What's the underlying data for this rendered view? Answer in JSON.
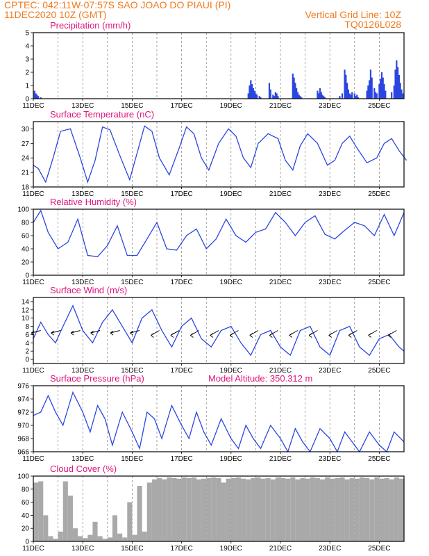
{
  "header": {
    "line1": "CPTEC:   042:11W-07:57S   SAO JOAO DO PIAUI (PI)",
    "line2_left": "11DEC2020 10Z (GMT)",
    "line2_right": "Vertical Grid Line: 10Z",
    "line3_right": "TQ0126L028"
  },
  "colors": {
    "header": "#f07a1e",
    "panel_title": "#e0157b",
    "series": "#2b46e0",
    "cloud": "#a9a9a9"
  },
  "chart_data": [
    {
      "type": "bar",
      "title": "Precipitation (mm/h)",
      "ylim": [
        0,
        5
      ],
      "yticks": [
        "0",
        "1",
        "2",
        "3",
        "4",
        "5"
      ],
      "xticks": [
        "11DEC",
        "13DEC",
        "15DEC",
        "17DEC",
        "19DEC",
        "21DEC",
        "23DEC",
        "25DEC"
      ],
      "series": [
        {
          "x": [
            0.05,
            0.1,
            0.15,
            0.2,
            0.3,
            8.7,
            8.75,
            8.8,
            8.85,
            8.9,
            8.95,
            9.0,
            9.05,
            9.15,
            9.2,
            9.55,
            9.6,
            9.7,
            9.75,
            9.8,
            9.85,
            9.9,
            10.5,
            10.55,
            10.6,
            10.65,
            10.7,
            10.75,
            10.8,
            10.85,
            11.5,
            11.55,
            11.6,
            11.65,
            11.7,
            11.75,
            11.8,
            12.4,
            12.5,
            12.6,
            12.65,
            12.7,
            12.75,
            12.8,
            12.85,
            12.9,
            13.0,
            13.05,
            13.1,
            13.15,
            13.5,
            13.55,
            13.6,
            13.65,
            13.7,
            13.8,
            13.85,
            13.9,
            14.0,
            14.05,
            14.1,
            14.15,
            14.2,
            14.25,
            14.5,
            14.6,
            14.65,
            14.7,
            14.75,
            14.8,
            14.85,
            14.9,
            14.95
          ],
          "values": [
            0.6,
            0.4,
            0.3,
            0.2,
            0.1,
            0.4,
            1.0,
            1.4,
            1.1,
            0.8,
            0.6,
            0.4,
            0.3,
            0.2,
            0.1,
            1.2,
            0.7,
            0.3,
            0.2,
            0.5,
            0.4,
            0.2,
            1.9,
            1.6,
            1.2,
            0.8,
            0.5,
            0.3,
            0.2,
            0.1,
            0.6,
            0.4,
            0.8,
            0.5,
            0.3,
            0.2,
            0.1,
            0.2,
            0.4,
            2.2,
            1.8,
            1.2,
            0.7,
            0.4,
            0.3,
            0.5,
            0.4,
            0.2,
            0.3,
            0.1,
            0.6,
            1.0,
            1.4,
            2.2,
            1.6,
            0.8,
            0.5,
            0.4,
            1.1,
            1.5,
            2.0,
            1.6,
            1.1,
            0.6,
            0.5,
            1.0,
            2.2,
            2.9,
            2.4,
            1.8,
            1.2,
            0.7,
            0.4
          ]
        }
      ]
    },
    {
      "type": "line",
      "title": "Surface Temperature (nC)",
      "ylim": [
        18,
        31.5
      ],
      "yticks": [
        "18",
        "21",
        "24",
        "27",
        "30"
      ],
      "xticks": [
        "11DEC",
        "13DEC",
        "15DEC",
        "17DEC",
        "19DEC",
        "21DEC",
        "23DEC",
        "25DEC"
      ],
      "series": [
        {
          "x": [
            0,
            0.2,
            0.5,
            0.8,
            1.1,
            1.5,
            1.9,
            2.2,
            2.5,
            2.8,
            3.1,
            3.5,
            3.9,
            4.2,
            4.5,
            4.8,
            5.1,
            5.5,
            5.9,
            6.2,
            6.5,
            6.8,
            7.1,
            7.5,
            7.9,
            8.2,
            8.5,
            8.8,
            9.1,
            9.5,
            9.9,
            10.2,
            10.5,
            10.8,
            11.1,
            11.5,
            11.9,
            12.2,
            12.5,
            12.8,
            13.1,
            13.5,
            13.9,
            14.2,
            14.5,
            14.8,
            15.1
          ],
          "values": [
            22.5,
            21.8,
            19.0,
            24.0,
            29.5,
            30.0,
            24.0,
            19.0,
            23.5,
            30.4,
            29.8,
            24.5,
            19.5,
            25.0,
            30.6,
            29.5,
            24.0,
            20.5,
            26.0,
            30.4,
            29.0,
            24.0,
            21.5,
            27.0,
            30.0,
            28.5,
            24.0,
            22.0,
            27.0,
            29.0,
            28.0,
            23.5,
            21.5,
            26.5,
            29.0,
            27.0,
            22.5,
            23.5,
            27.0,
            28.5,
            26.0,
            23.0,
            24.0,
            27.0,
            28.0,
            25.5,
            23.5
          ]
        }
      ]
    },
    {
      "type": "line",
      "title": "Relative Humidity (%)",
      "ylim": [
        0,
        100
      ],
      "yticks": [
        "0",
        "20",
        "40",
        "60",
        "80",
        "100"
      ],
      "xticks": [
        "11DEC",
        "13DEC",
        "15DEC",
        "17DEC",
        "19DEC",
        "21DEC",
        "23DEC",
        "25DEC"
      ],
      "series": [
        {
          "x": [
            0,
            0.3,
            0.6,
            1.0,
            1.4,
            1.8,
            2.2,
            2.6,
            3.0,
            3.4,
            3.8,
            4.2,
            4.6,
            5.0,
            5.4,
            5.8,
            6.2,
            6.6,
            7.0,
            7.4,
            7.8,
            8.2,
            8.6,
            9.0,
            9.4,
            9.8,
            10.2,
            10.6,
            11.0,
            11.4,
            11.8,
            12.2,
            12.6,
            13.0,
            13.4,
            13.8,
            14.2,
            14.6,
            15.0
          ],
          "values": [
            80,
            98,
            65,
            40,
            50,
            85,
            30,
            28,
            45,
            75,
            30,
            30,
            55,
            80,
            40,
            38,
            60,
            70,
            40,
            55,
            85,
            60,
            50,
            65,
            70,
            95,
            80,
            60,
            80,
            90,
            62,
            55,
            68,
            80,
            75,
            60,
            92,
            60,
            95
          ]
        }
      ]
    },
    {
      "type": "line",
      "title": "Surface Wind (m/s)",
      "ylim": [
        -1,
        15
      ],
      "yticks": [
        "0",
        "2",
        "4",
        "6",
        "8",
        "10",
        "12",
        "14"
      ],
      "xticks": [
        "11DEC",
        "13DEC",
        "15DEC",
        "17DEC",
        "19DEC",
        "21DEC",
        "23DEC",
        "25DEC"
      ],
      "series": [
        {
          "x": [
            0,
            0.3,
            0.6,
            0.9,
            1.2,
            1.6,
            2.0,
            2.4,
            2.8,
            3.2,
            3.6,
            4.0,
            4.4,
            4.8,
            5.2,
            5.6,
            6.0,
            6.4,
            6.8,
            7.2,
            7.6,
            8.0,
            8.4,
            8.8,
            9.2,
            9.6,
            10.0,
            10.4,
            10.8,
            11.2,
            11.6,
            12.0,
            12.4,
            12.8,
            13.2,
            13.6,
            14.0,
            14.4,
            14.8,
            15.0
          ],
          "values": [
            5,
            9,
            6,
            4,
            8,
            13,
            7,
            4,
            9,
            12,
            8,
            4,
            10,
            12,
            7,
            3,
            8,
            10,
            5,
            3,
            7,
            8,
            4,
            1,
            6,
            7,
            3,
            1,
            7,
            8,
            3,
            1,
            7,
            8,
            3,
            1,
            5,
            6,
            3,
            2
          ]
        }
      ]
    },
    {
      "type": "line",
      "title": "Surface Pressure (hPa)",
      "annotation": "Model Altitude: 350.312  m",
      "ylim": [
        966,
        976
      ],
      "yticks": [
        "966",
        "968",
        "970",
        "972",
        "974",
        "976"
      ],
      "xticks": [
        "11DEC",
        "13DEC",
        "15DEC",
        "17DEC",
        "19DEC",
        "21DEC",
        "23DEC",
        "25DEC"
      ],
      "series": [
        {
          "x": [
            0,
            0.3,
            0.6,
            0.9,
            1.2,
            1.6,
            2.0,
            2.3,
            2.6,
            2.9,
            3.2,
            3.6,
            4.0,
            4.3,
            4.6,
            4.9,
            5.2,
            5.6,
            6.0,
            6.3,
            6.6,
            6.9,
            7.2,
            7.6,
            8.0,
            8.3,
            8.6,
            8.9,
            9.2,
            9.6,
            10.0,
            10.3,
            10.6,
            10.9,
            11.2,
            11.6,
            12.0,
            12.3,
            12.6,
            12.9,
            13.2,
            13.6,
            14.0,
            14.3,
            14.6,
            15.0
          ],
          "values": [
            971.5,
            972,
            974.5,
            972,
            970,
            975,
            972,
            969,
            973,
            971,
            967,
            972,
            969,
            966.5,
            972,
            971,
            968,
            973,
            970,
            968,
            972,
            969,
            967,
            971,
            968,
            966.5,
            970,
            968,
            966.5,
            970,
            968,
            966,
            969.5,
            967.5,
            966,
            969.5,
            968,
            966,
            969,
            967.5,
            966,
            969,
            967,
            966,
            969,
            967.5
          ]
        }
      ]
    },
    {
      "type": "bar",
      "title": "Cloud Cover (%)",
      "ylim": [
        0,
        100
      ],
      "yticks": [
        "0",
        "20",
        "40",
        "60",
        "80",
        "100"
      ],
      "xticks": [
        "11DEC",
        "13DEC",
        "15DEC",
        "17DEC",
        "19DEC",
        "21DEC",
        "23DEC",
        "25DEC"
      ],
      "series": [
        {
          "x": [
            0.1,
            0.3,
            0.5,
            0.7,
            0.9,
            1.1,
            1.3,
            1.5,
            1.7,
            1.9,
            2.1,
            2.3,
            2.5,
            2.7,
            2.9,
            3.1,
            3.3,
            3.5,
            3.7,
            3.9,
            4.1,
            4.3,
            4.5,
            4.7,
            4.9,
            5.1,
            5.3,
            5.5,
            5.7,
            5.9,
            6.1,
            6.3,
            6.5,
            6.7,
            6.9,
            7.1,
            7.3,
            7.5,
            7.7,
            7.9,
            8.1,
            8.3,
            8.5,
            8.7,
            8.9,
            9.1,
            9.3,
            9.5,
            9.7,
            9.9,
            10.1,
            10.3,
            10.5,
            10.7,
            10.9,
            11.1,
            11.3,
            11.5,
            11.7,
            11.9,
            12.1,
            12.3,
            12.5,
            12.7,
            12.9,
            13.1,
            13.3,
            13.5,
            13.7,
            13.9,
            14.1,
            14.3,
            14.5,
            14.7,
            14.9
          ],
          "values": [
            90,
            92,
            40,
            8,
            4,
            15,
            92,
            70,
            20,
            8,
            5,
            10,
            30,
            8,
            4,
            6,
            40,
            12,
            6,
            60,
            10,
            85,
            15,
            90,
            95,
            97,
            95,
            98,
            97,
            96,
            98,
            97,
            98,
            95,
            96,
            97,
            98,
            97,
            90,
            96,
            97,
            98,
            96,
            95,
            97,
            98,
            96,
            97,
            95,
            98,
            97,
            96,
            98,
            95,
            97,
            96,
            98,
            97,
            95,
            98,
            96,
            97,
            98,
            95,
            97,
            96,
            98,
            97,
            95,
            98,
            96,
            97,
            95,
            98,
            96
          ]
        }
      ]
    }
  ]
}
